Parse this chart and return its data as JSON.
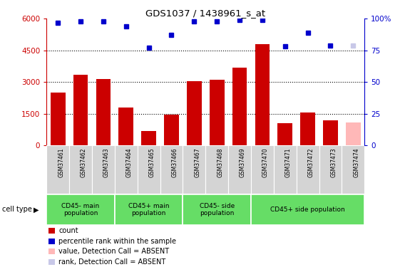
{
  "title": "GDS1037 / 1438961_s_at",
  "samples": [
    "GSM37461",
    "GSM37462",
    "GSM37463",
    "GSM37464",
    "GSM37465",
    "GSM37466",
    "GSM37467",
    "GSM37468",
    "GSM37469",
    "GSM37470",
    "GSM37471",
    "GSM37472",
    "GSM37473",
    "GSM37474"
  ],
  "bar_values": [
    2500,
    3350,
    3150,
    1800,
    700,
    1450,
    3050,
    3100,
    3700,
    4800,
    1050,
    1550,
    1200,
    1100
  ],
  "bar_colors": [
    "#cc0000",
    "#cc0000",
    "#cc0000",
    "#cc0000",
    "#cc0000",
    "#cc0000",
    "#cc0000",
    "#cc0000",
    "#cc0000",
    "#cc0000",
    "#cc0000",
    "#cc0000",
    "#cc0000",
    "#ffb8b8"
  ],
  "rank_values": [
    97,
    98,
    98,
    94,
    77,
    87,
    98,
    98,
    99,
    99,
    78,
    89,
    79,
    79
  ],
  "rank_colors": [
    "#0000cc",
    "#0000cc",
    "#0000cc",
    "#0000cc",
    "#0000cc",
    "#0000cc",
    "#0000cc",
    "#0000cc",
    "#0000cc",
    "#0000cc",
    "#0000cc",
    "#0000cc",
    "#0000cc",
    "#c8c8e8"
  ],
  "ylim_left": [
    0,
    6000
  ],
  "ylim_right": [
    0,
    100
  ],
  "yticks_left": [
    0,
    1500,
    3000,
    4500,
    6000
  ],
  "yticks_right": [
    0,
    25,
    50,
    75,
    100
  ],
  "group_boundaries": [
    0,
    3,
    6,
    9,
    14
  ],
  "group_labels": [
    "CD45- main\npopulation",
    "CD45+ main\npopulation",
    "CD45- side\npopulation",
    "CD45+ side population"
  ],
  "group_color": "#66dd66",
  "legend_items": [
    {
      "label": "count",
      "color": "#cc0000"
    },
    {
      "label": "percentile rank within the sample",
      "color": "#0000cc"
    },
    {
      "label": "value, Detection Call = ABSENT",
      "color": "#ffb8b8"
    },
    {
      "label": "rank, Detection Call = ABSENT",
      "color": "#c8c8e8"
    }
  ],
  "cell_type_label": "cell type",
  "tick_area_color": "#d4d4d4"
}
